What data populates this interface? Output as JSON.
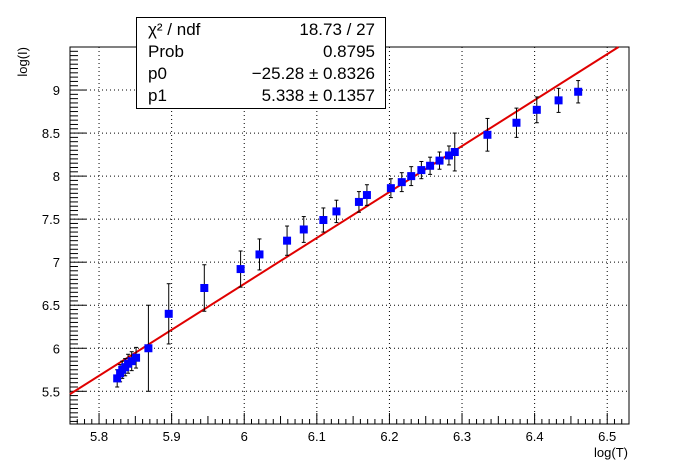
{
  "chart_data": {
    "type": "scatter",
    "title": "",
    "xlabel": "log(T)",
    "ylabel": "log(I)",
    "xlim": [
      5.76,
      6.53
    ],
    "ylim": [
      5.12,
      9.5
    ],
    "grid": true,
    "x_ticks": [
      "5.8",
      "5.9",
      "6",
      "6.1",
      "6.2",
      "6.3",
      "6.4",
      "6.5"
    ],
    "y_ticks": [
      "5.5",
      "6",
      "6.5",
      "7",
      "7.5",
      "8",
      "8.5",
      "9"
    ],
    "colors": {
      "points": "#0000ff",
      "fit_line": "#e00000",
      "errorbars": "#000000"
    },
    "points": [
      {
        "x": 5.825,
        "y": 5.65,
        "err": 0.1
      },
      {
        "x": 5.829,
        "y": 5.71,
        "err": 0.1
      },
      {
        "x": 5.832,
        "y": 5.75,
        "err": 0.1
      },
      {
        "x": 5.836,
        "y": 5.78,
        "err": 0.1
      },
      {
        "x": 5.84,
        "y": 5.82,
        "err": 0.11
      },
      {
        "x": 5.845,
        "y": 5.85,
        "err": 0.11
      },
      {
        "x": 5.851,
        "y": 5.89,
        "err": 0.12
      },
      {
        "x": 5.868,
        "y": 6.0,
        "err": 0.5
      },
      {
        "x": 5.896,
        "y": 6.4,
        "err": 0.35
      },
      {
        "x": 5.945,
        "y": 6.7,
        "err": 0.27
      },
      {
        "x": 5.995,
        "y": 6.92,
        "err": 0.21
      },
      {
        "x": 6.021,
        "y": 7.09,
        "err": 0.18
      },
      {
        "x": 6.059,
        "y": 7.25,
        "err": 0.17
      },
      {
        "x": 6.082,
        "y": 7.38,
        "err": 0.15
      },
      {
        "x": 6.109,
        "y": 7.49,
        "err": 0.14
      },
      {
        "x": 6.127,
        "y": 7.59,
        "err": 0.13
      },
      {
        "x": 6.158,
        "y": 7.7,
        "err": 0.12
      },
      {
        "x": 6.169,
        "y": 7.78,
        "err": 0.12
      },
      {
        "x": 6.202,
        "y": 7.86,
        "err": 0.11
      },
      {
        "x": 6.217,
        "y": 7.93,
        "err": 0.11
      },
      {
        "x": 6.23,
        "y": 8.0,
        "err": 0.11
      },
      {
        "x": 6.244,
        "y": 8.07,
        "err": 0.1
      },
      {
        "x": 6.256,
        "y": 8.12,
        "err": 0.1
      },
      {
        "x": 6.269,
        "y": 8.18,
        "err": 0.1
      },
      {
        "x": 6.282,
        "y": 8.24,
        "err": 0.11
      },
      {
        "x": 6.29,
        "y": 8.28,
        "err": 0.22
      },
      {
        "x": 6.335,
        "y": 8.48,
        "err": 0.19
      },
      {
        "x": 6.375,
        "y": 8.62,
        "err": 0.17
      },
      {
        "x": 6.403,
        "y": 8.77,
        "err": 0.15
      },
      {
        "x": 6.433,
        "y": 8.88,
        "err": 0.14
      },
      {
        "x": 6.46,
        "y": 8.98,
        "err": 0.13
      }
    ],
    "fit": {
      "p0": -25.28,
      "p1": 5.338,
      "x_range": [
        5.76,
        6.53
      ]
    }
  },
  "stats": {
    "chi2_label": "χ² / ndf",
    "chi2_value": "18.73 / 27",
    "prob_label": "Prob",
    "prob_value": "0.8795",
    "p0_label": "p0",
    "p0_value": "−25.28 ± 0.8326",
    "p1_label": "p1",
    "p1_value": "5.338 ± 0.1357"
  }
}
